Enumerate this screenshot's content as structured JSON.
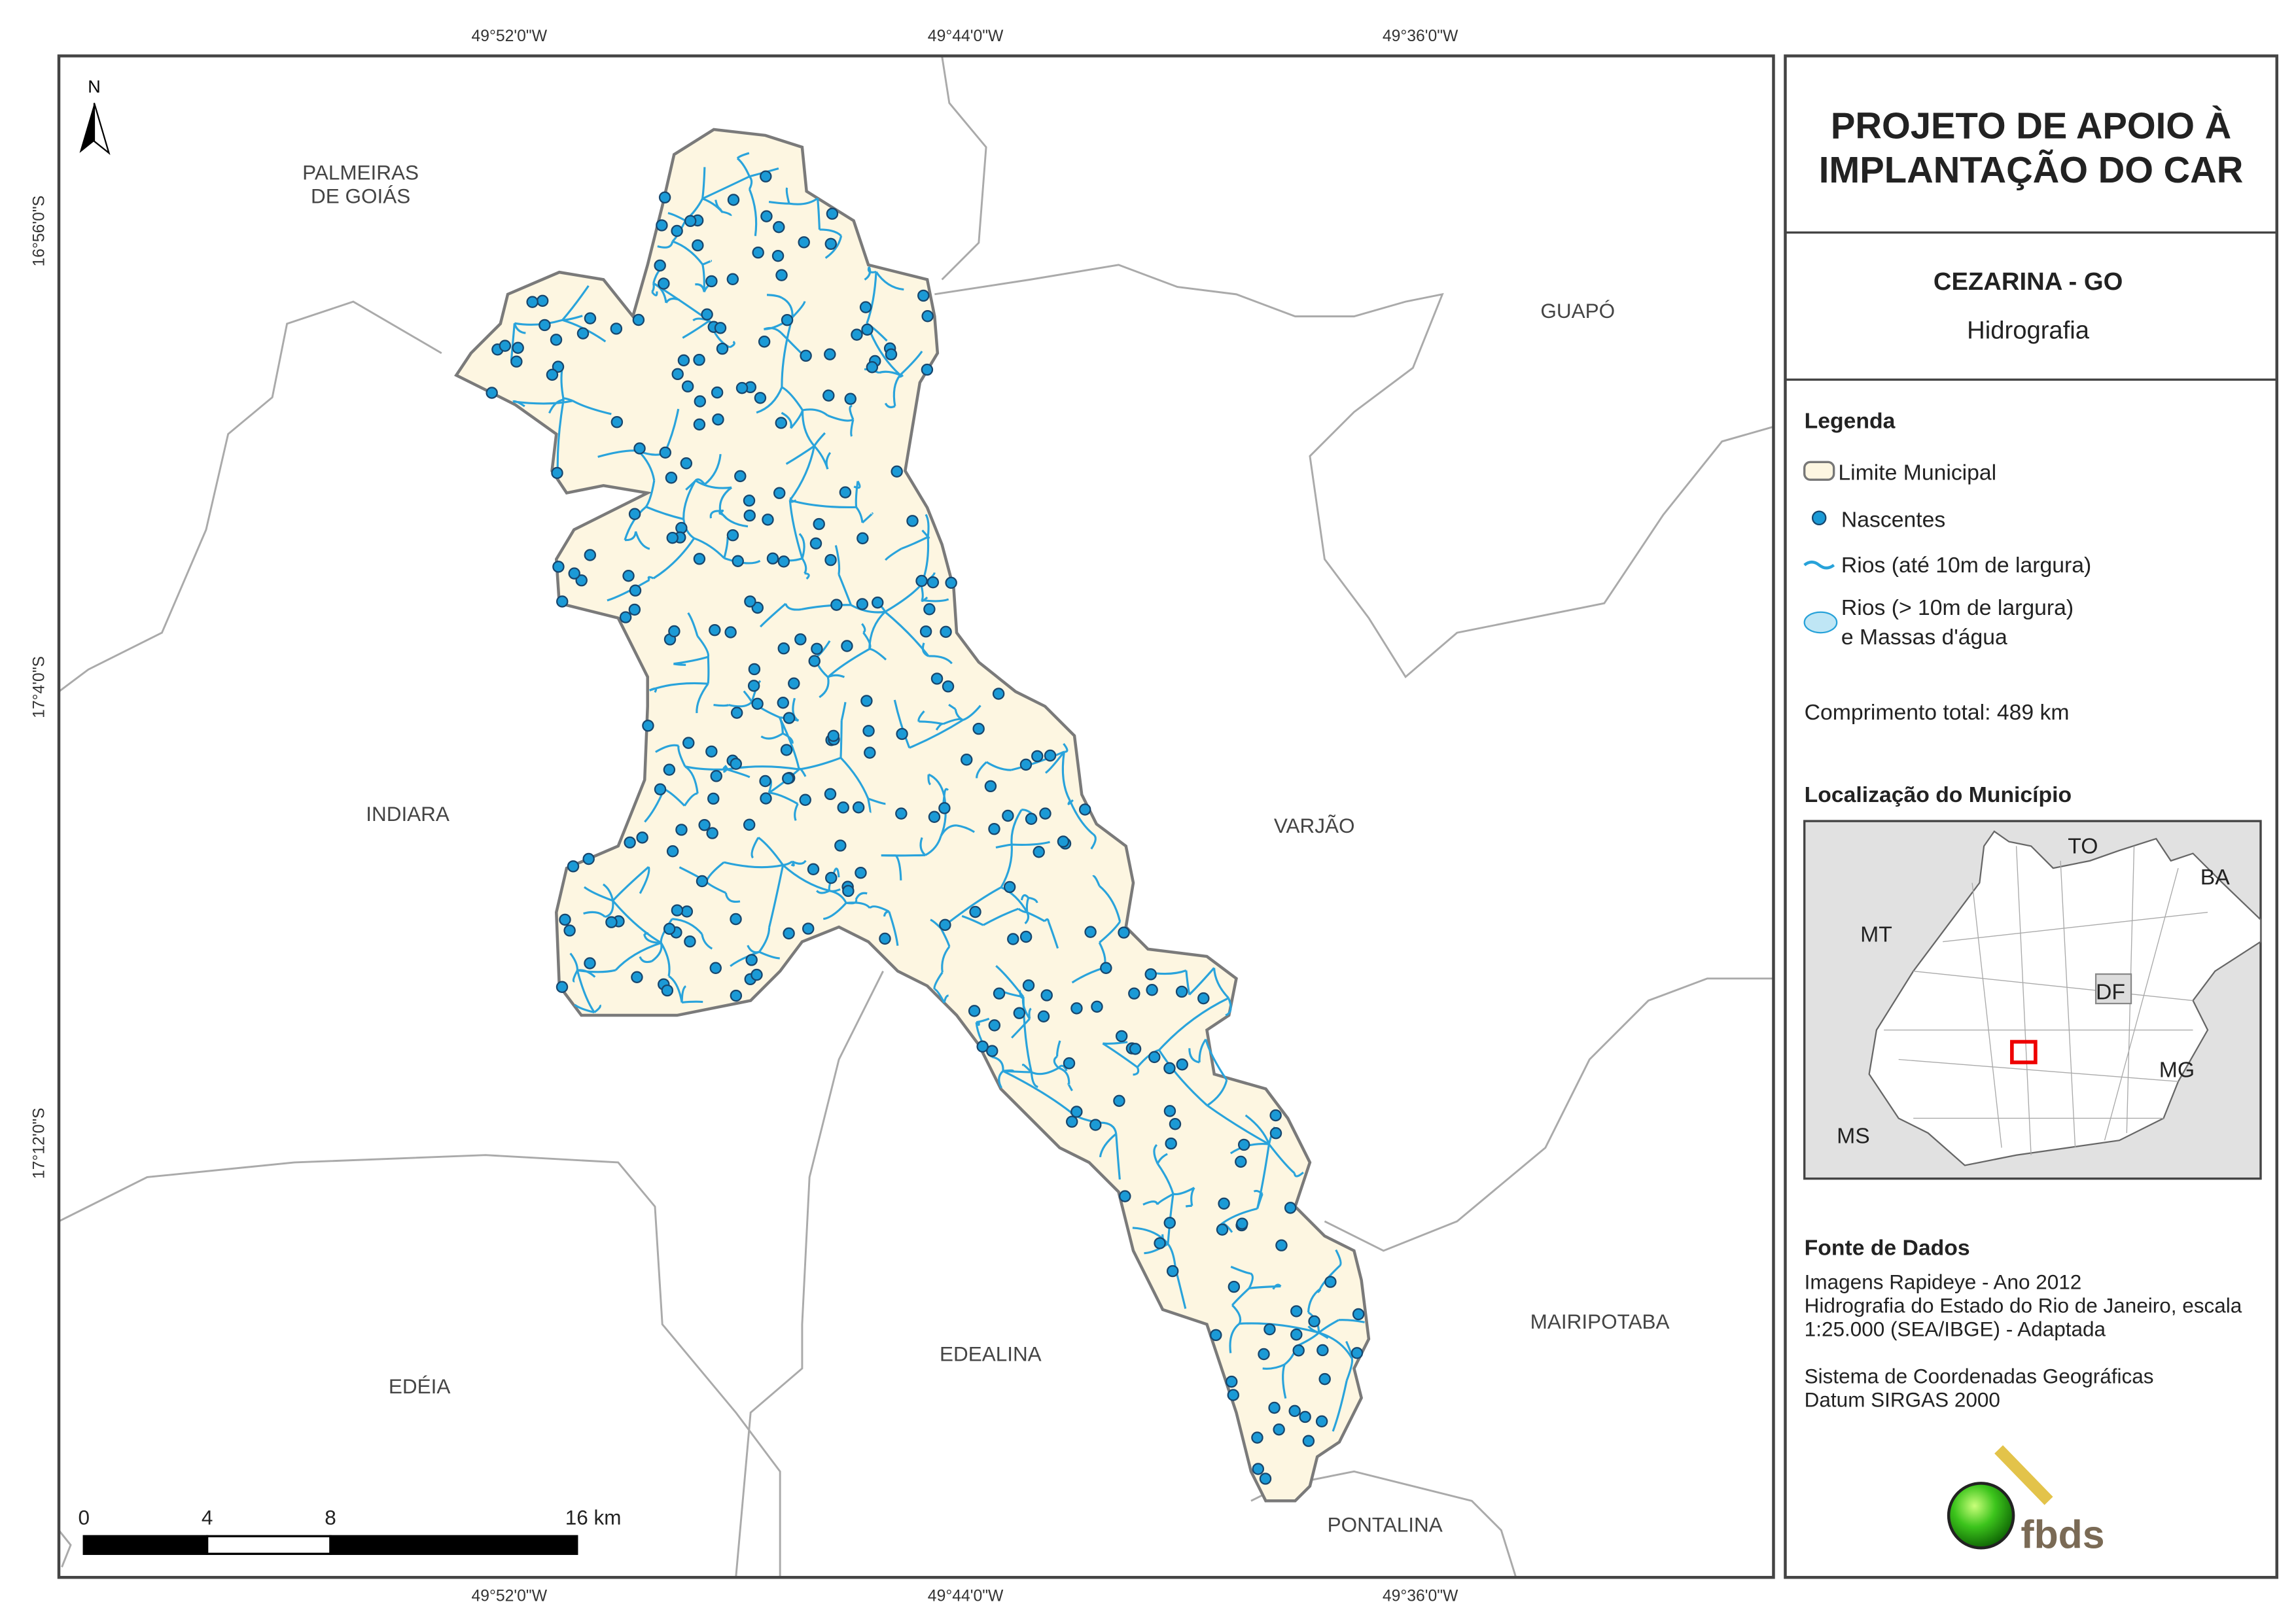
{
  "map": {
    "coords_top": [
      "49°52'0\"W",
      "49°44'0\"W",
      "49°36'0\"W"
    ],
    "coords_bottom": [
      "49°52'0\"W",
      "49°44'0\"W",
      "49°36'0\"W"
    ],
    "coords_left": [
      "16°56'0\"S",
      "17°4'0\"S",
      "17°12'0\"S"
    ],
    "north": "N",
    "places": [
      {
        "lines": [
          "PALMEIRAS",
          "DE GOIÁS"
        ]
      },
      {
        "lines": [
          "GUAPÓ"
        ]
      },
      {
        "lines": [
          "INDIARA"
        ]
      },
      {
        "lines": [
          "VARJÃO"
        ]
      },
      {
        "lines": [
          "EDÉIA"
        ]
      },
      {
        "lines": [
          "EDEALINA"
        ]
      },
      {
        "lines": [
          "MAIRIPOTABA"
        ]
      },
      {
        "lines": [
          "PONTALINA"
        ]
      }
    ],
    "scale_ticks": [
      0,
      4,
      8,
      {
        "value": 16,
        "label": "16 km"
      }
    ]
  },
  "panel": {
    "title_lines": [
      "PROJETO DE APOIO À",
      "IMPLANTAÇÃO DO CAR"
    ],
    "municipality": "CEZARINA - GO",
    "theme": "Hidrografia",
    "legend": {
      "title": "Legenda",
      "items": [
        "Limite Municipal",
        "Nascentes",
        "Rios (até 10m de largura)",
        "Rios (> 10m de largura)",
        "e Massas d'água"
      ]
    },
    "total_length": "Comprimento total:  489 km",
    "location_title": "Localização do Município",
    "inset_labels": [
      "TO",
      "BA",
      "MT",
      "DF",
      "MG",
      "MS"
    ],
    "sources_title": "Fonte de Dados",
    "sources": [
      "Imagens Rapideye - Ano 2012",
      "Hidrografia do Estado do Rio de Janeiro, escala",
      "1:25.000 (SEA/IBGE) - Adaptada",
      "",
      "Sistema de Coordenadas Geográficas",
      "Datum SIRGAS 2000"
    ],
    "logo": "fbds"
  }
}
